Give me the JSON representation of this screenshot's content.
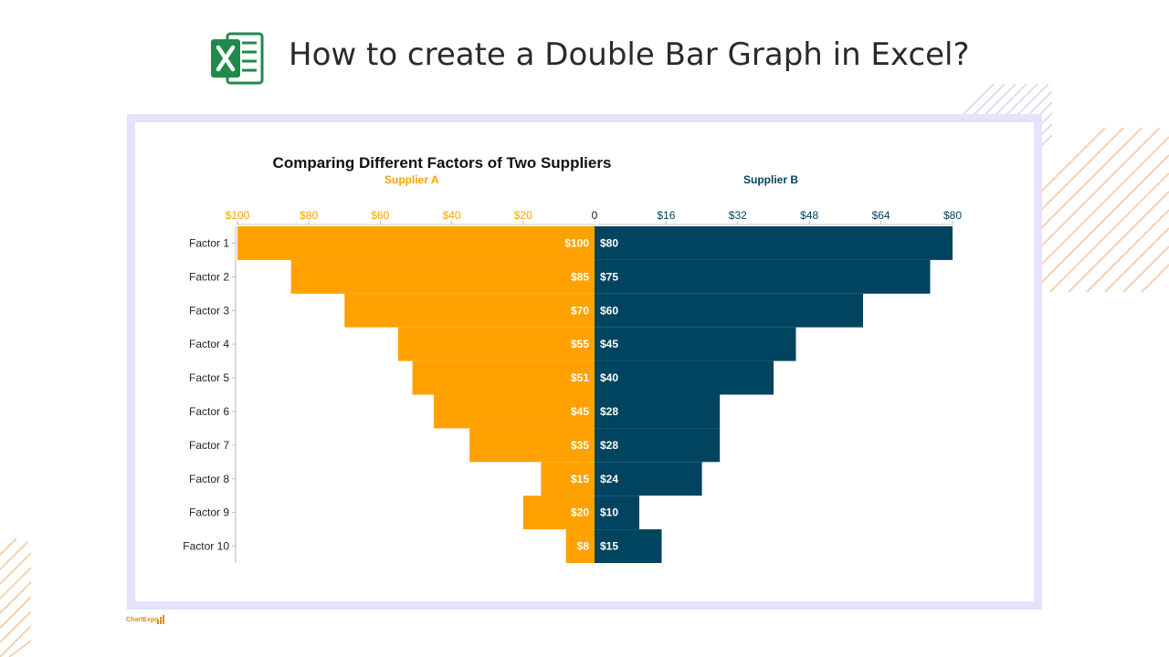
{
  "page": {
    "title": "How to create a Double Bar Graph in Excel?",
    "brand": "ChartExpo"
  },
  "colors": {
    "supplier_a": "#ffa100",
    "supplier_b": "#00445f",
    "frame": "#e4e3fb",
    "excel_green": "#1f8a4c",
    "hatch": "#f7c8a0"
  },
  "icons": {
    "excel": "excel-logo-icon",
    "brand": "chartexpo-logo-icon"
  },
  "chart_data": {
    "type": "bar",
    "orientation": "horizontal",
    "layout": "back-to-back",
    "title": "Comparing Different Factors of Two Suppliers",
    "categories": [
      "Factor 1",
      "Factor 2",
      "Factor 3",
      "Factor 4",
      "Factor 5",
      "Factor 6",
      "Factor 7",
      "Factor 8",
      "Factor 9",
      "Factor 10"
    ],
    "series": [
      {
        "name": "Supplier A",
        "side": "left",
        "values": [
          100,
          85,
          70,
          55,
          51,
          45,
          35,
          15,
          20,
          8
        ],
        "labels": [
          "$100",
          "$85",
          "$70",
          "$55",
          "$51",
          "$45",
          "$35",
          "$15",
          "$20",
          "$8"
        ],
        "axis_max": 100,
        "ticks": [
          "$100",
          "$80",
          "$60",
          "$40",
          "$20"
        ]
      },
      {
        "name": "Supplier B",
        "side": "right",
        "values": [
          80,
          75,
          60,
          45,
          40,
          28,
          28,
          24,
          10,
          15
        ],
        "labels": [
          "$80",
          "$75",
          "$60",
          "$45",
          "$40",
          "$28",
          "$28",
          "$24",
          "$10",
          "$15"
        ],
        "axis_max": 80,
        "ticks": [
          "$16",
          "$32",
          "$48",
          "$64",
          "$80"
        ]
      }
    ],
    "zero_label": "0",
    "grid": false,
    "legend": "top"
  }
}
